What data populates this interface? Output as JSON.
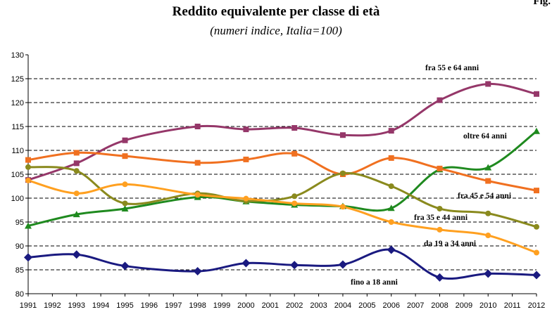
{
  "header": {
    "title": "Reddito equivalente per classe di età",
    "subtitle": "(numeri indice, Italia=100)",
    "corner_text": "Fig."
  },
  "chart_data": {
    "type": "line",
    "title": "Reddito equivalente per classe di età",
    "subtitle": "(numeri indice, Italia=100)",
    "xlabel": "",
    "ylabel": "",
    "x_ticks": [
      1991,
      1992,
      1993,
      1994,
      1995,
      1996,
      1997,
      1998,
      1999,
      2000,
      2001,
      2002,
      2003,
      2004,
      2005,
      2006,
      2007,
      2008,
      2009,
      2010,
      2011,
      2012
    ],
    "xlim": [
      1991,
      2012
    ],
    "ylim": [
      80,
      130
    ],
    "y_ticks": [
      80,
      85,
      90,
      95,
      100,
      105,
      110,
      115,
      120,
      125,
      130
    ],
    "dashed_gridlines_at": [
      85,
      90,
      95,
      100,
      105,
      110,
      115,
      120,
      125
    ],
    "legend": "inline labels",
    "series": [
      {
        "name": "fra 55 e 64 anni",
        "color": "#953769",
        "marker": "square",
        "x": [
          1991,
          1993,
          1995,
          1998,
          2000,
          2002,
          2004,
          2006,
          2008,
          2010,
          2012
        ],
        "values": [
          103.8,
          107.3,
          112.1,
          115.0,
          114.4,
          114.7,
          113.2,
          114.1,
          120.5,
          123.9,
          121.8
        ]
      },
      {
        "name": "oltre 64 anni",
        "color": "#1f8a1f",
        "marker": "triangle",
        "x": [
          1991,
          1993,
          1995,
          1998,
          2000,
          2002,
          2004,
          2006,
          2008,
          2010,
          2012
        ],
        "values": [
          94.2,
          96.6,
          97.8,
          100.2,
          99.3,
          98.6,
          98.3,
          97.9,
          106.0,
          106.4,
          114.0
        ]
      },
      {
        "name": "fra 45 e 54 anni",
        "color": "#f07020",
        "marker": "square",
        "x": [
          1991,
          1993,
          1995,
          1998,
          2000,
          2002,
          2004,
          2006,
          2008,
          2010,
          2012
        ],
        "values": [
          108.0,
          109.5,
          108.8,
          107.4,
          108.1,
          109.3,
          105.0,
          108.4,
          106.2,
          103.6,
          101.6
        ]
      },
      {
        "name": "fra 35 e 44 anni",
        "color": "#8a8a1e",
        "marker": "circle",
        "x": [
          1991,
          1993,
          1995,
          1998,
          2000,
          2002,
          2004,
          2006,
          2008,
          2010,
          2012
        ],
        "values": [
          106.5,
          105.7,
          98.9,
          101.0,
          99.4,
          100.4,
          105.2,
          102.5,
          97.8,
          96.8,
          94.0
        ]
      },
      {
        "name": "da 19 a 34 anni",
        "color": "#ffa020",
        "marker": "circle",
        "x": [
          1991,
          1993,
          1995,
          1998,
          2000,
          2002,
          2004,
          2006,
          2008,
          2010,
          2012
        ],
        "values": [
          103.7,
          101.0,
          102.9,
          100.7,
          99.9,
          98.9,
          98.2,
          95.0,
          93.4,
          92.2,
          88.6
        ]
      },
      {
        "name": "fino a 18 anni",
        "color": "#1a1a80",
        "marker": "diamond",
        "x": [
          1991,
          1993,
          1995,
          1998,
          2000,
          2002,
          2004,
          2006,
          2008,
          2010,
          2012
        ],
        "values": [
          87.6,
          88.2,
          85.8,
          84.7,
          86.4,
          86.0,
          86.1,
          89.2,
          83.4,
          84.2,
          83.9
        ]
      }
    ]
  }
}
